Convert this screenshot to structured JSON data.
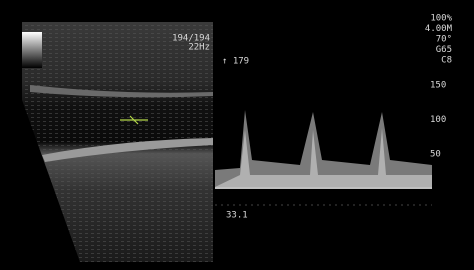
{
  "header": {
    "frame": "194/194",
    "rate": "22Hz"
  },
  "settings": [
    "100%",
    "4.00M",
    "70°",
    "G65",
    "C8"
  ],
  "doppler": {
    "max": "↑ 179",
    "scale": [
      "150",
      "100",
      "50"
    ],
    "value": "33.1"
  }
}
